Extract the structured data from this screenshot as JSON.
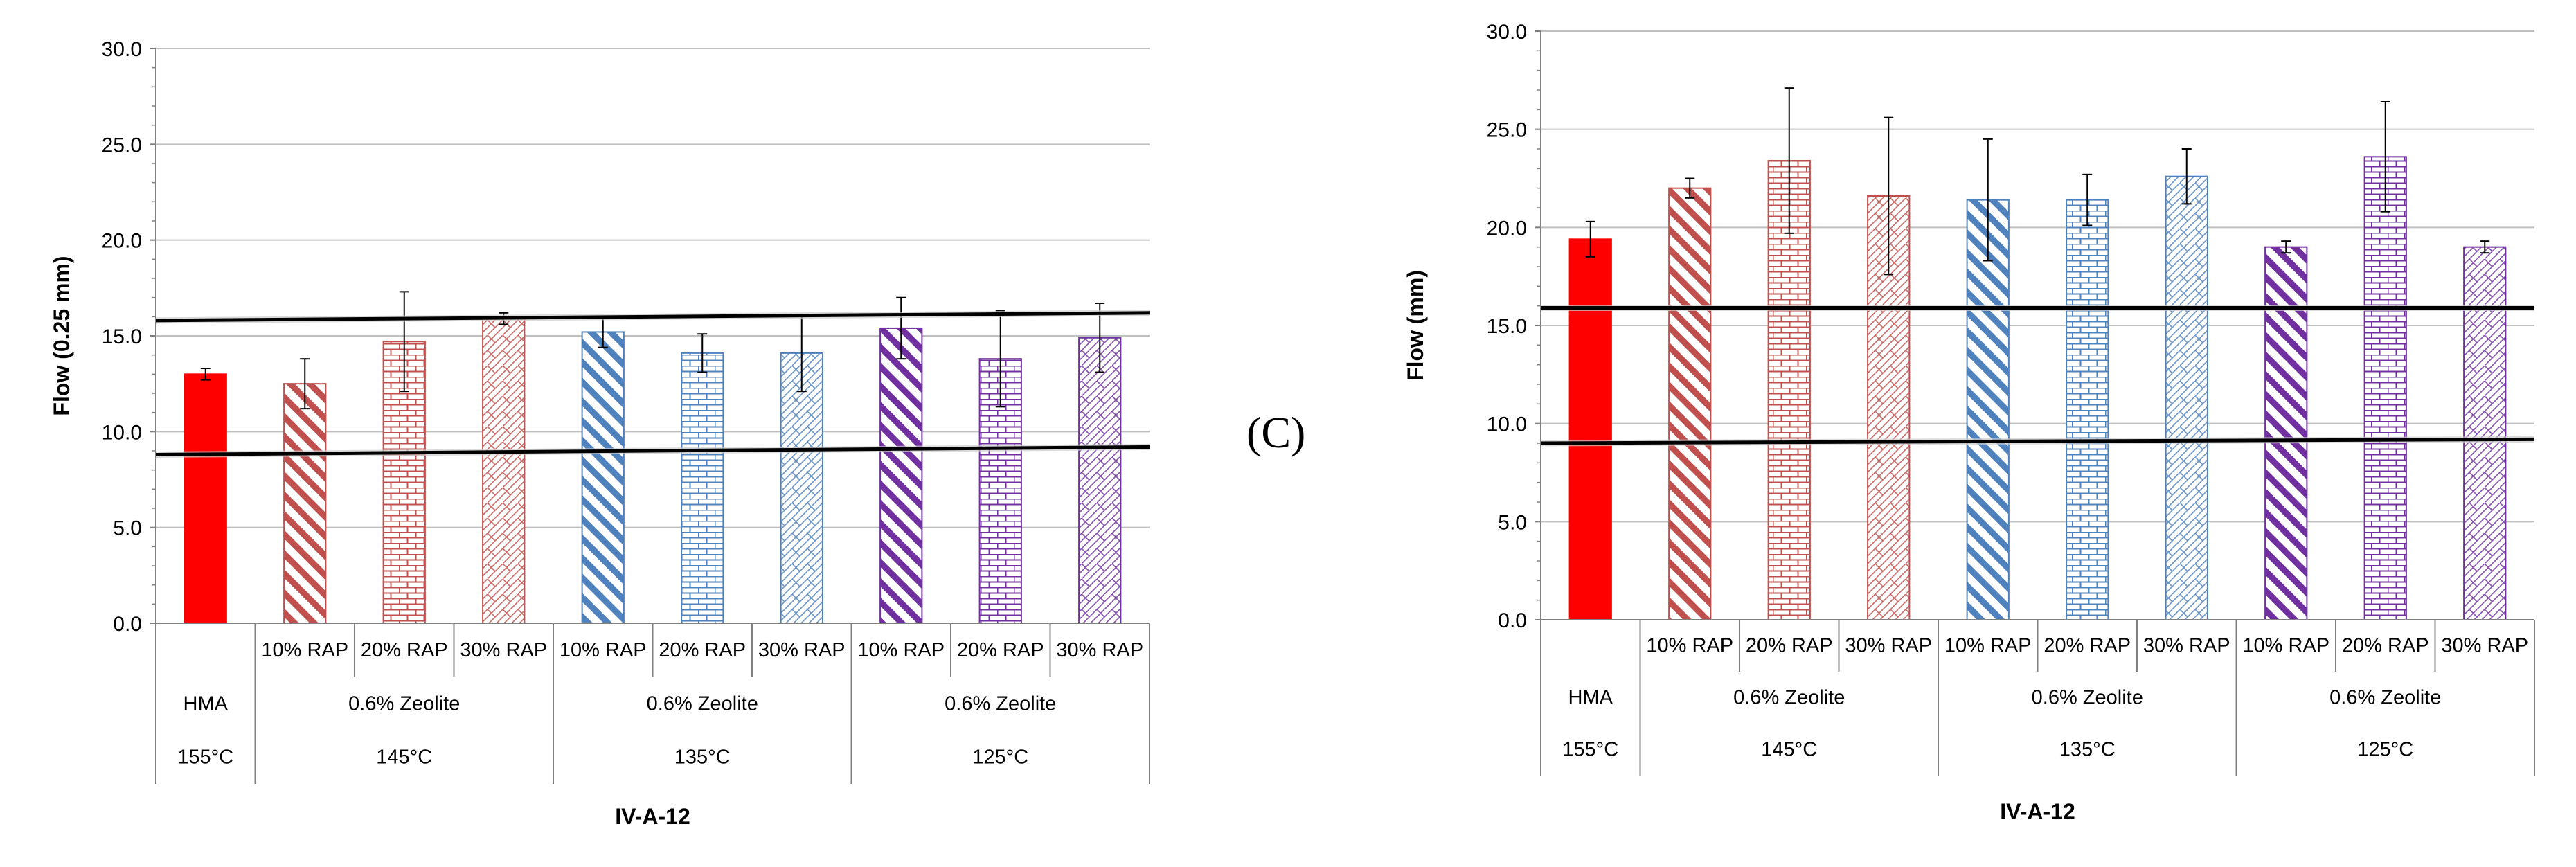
{
  "panel_label": "(C)",
  "colors": {
    "hma": "#ff0000",
    "red": "#c0504d",
    "blue": "#4f81bd",
    "purple": "#7030a0",
    "grid": "#bfbfbf",
    "axis": "#808080",
    "limit": "#000000"
  },
  "chart_data": [
    {
      "type": "bar",
      "title": "",
      "xlabel": "IV-A-12",
      "ylabel": "Flow (0.25 mm)",
      "ylim": [
        0,
        30
      ],
      "yticks": [
        "0.0",
        "5.0",
        "10.0",
        "15.0",
        "20.0",
        "25.0",
        "30.0"
      ],
      "grid": true,
      "categories": [
        "HMA",
        "10% RAP",
        "20% RAP",
        "30% RAP",
        "10% RAP",
        "20% RAP",
        "30% RAP",
        "10% RAP",
        "20% RAP",
        "30% RAP"
      ],
      "values": [
        13.0,
        12.5,
        14.7,
        15.9,
        15.2,
        14.1,
        14.1,
        15.4,
        13.8,
        14.9
      ],
      "errors": [
        0.3,
        1.3,
        2.6,
        0.3,
        0.8,
        1.0,
        2.0,
        1.6,
        2.5,
        1.8
      ],
      "series_styles": [
        "hma",
        "red-diag",
        "red-brick",
        "red-lattice",
        "blue-diag",
        "blue-brick",
        "blue-lattice",
        "purple-diag",
        "purple-brick",
        "purple-lattice"
      ],
      "category_labels": [
        [
          "HMA",
          "155°C"
        ],
        [
          "10% RAP"
        ],
        [
          "20% RAP"
        ],
        [
          "30% RAP"
        ],
        [
          "10% RAP"
        ],
        [
          "20% RAP"
        ],
        [
          "30% RAP"
        ],
        [
          "10% RAP"
        ],
        [
          "20% RAP"
        ],
        [
          "30% RAP"
        ]
      ],
      "groups": [
        {
          "label": "0.6% Zeolite",
          "temp": "145°C"
        },
        {
          "label": "0.6% Zeolite",
          "temp": "135°C"
        },
        {
          "label": "0.6% Zeolite",
          "temp": "125°C"
        }
      ],
      "limit_lines": [
        {
          "name": "upper limit",
          "start": 15.8,
          "end": 16.2
        },
        {
          "name": "lower limit",
          "start": 8.8,
          "end": 9.2
        }
      ]
    },
    {
      "type": "bar",
      "title": "",
      "xlabel": "IV-A-12",
      "ylabel": "Flow (mm)",
      "ylim": [
        0,
        30
      ],
      "yticks": [
        "0.0",
        "5.0",
        "10.0",
        "15.0",
        "20.0",
        "25.0",
        "30.0"
      ],
      "grid": true,
      "categories": [
        "HMA",
        "10% RAP",
        "20% RAP",
        "30% RAP",
        "10% RAP",
        "20% RAP",
        "30% RAP",
        "10% RAP",
        "20% RAP",
        "30% RAP"
      ],
      "values": [
        19.4,
        22.0,
        23.4,
        21.6,
        21.4,
        21.4,
        22.6,
        19.0,
        23.6,
        19.0
      ],
      "errors": [
        0.9,
        0.5,
        3.7,
        4.0,
        3.1,
        1.3,
        1.4,
        0.3,
        2.8,
        0.3
      ],
      "series_styles": [
        "hma",
        "red-diag",
        "red-brick",
        "red-lattice",
        "blue-diag",
        "blue-brick",
        "blue-lattice",
        "purple-diag",
        "purple-brick",
        "purple-lattice"
      ],
      "category_labels": [
        [
          "HMA",
          "155°C"
        ],
        [
          "10% RAP"
        ],
        [
          "20% RAP"
        ],
        [
          "30% RAP"
        ],
        [
          "10% RAP"
        ],
        [
          "20% RAP"
        ],
        [
          "30% RAP"
        ],
        [
          "10% RAP"
        ],
        [
          "20% RAP"
        ],
        [
          "30% RAP"
        ]
      ],
      "groups": [
        {
          "label": "0.6% Zeolite",
          "temp": "145°C"
        },
        {
          "label": "0.6% Zeolite",
          "temp": "135°C"
        },
        {
          "label": "0.6% Zeolite",
          "temp": "125°C"
        }
      ],
      "limit_lines": [
        {
          "name": "upper limit",
          "start": 15.9,
          "end": 15.9
        },
        {
          "name": "lower limit",
          "start": 9.0,
          "end": 9.2
        }
      ]
    }
  ]
}
